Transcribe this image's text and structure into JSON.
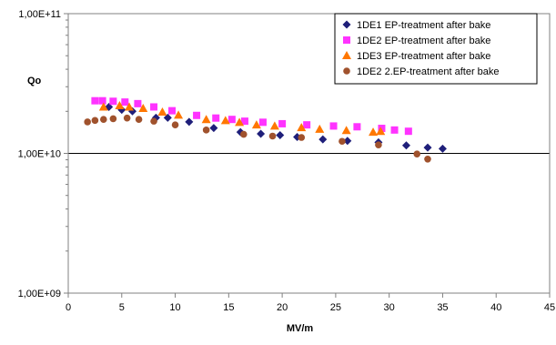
{
  "chart_data": {
    "type": "scatter",
    "title": "",
    "xlabel": "MV/m",
    "ylabel": "Qo",
    "xlim": [
      0,
      45
    ],
    "x_ticks": [
      0,
      5,
      10,
      15,
      20,
      25,
      30,
      35,
      40,
      45
    ],
    "x_tick_labels": [
      "0",
      "5",
      "10",
      "15",
      "20",
      "25",
      "30",
      "35",
      "40",
      "45"
    ],
    "ylim": [
      1000000000,
      100000000000
    ],
    "y_scale": "log",
    "y_ticks": [
      1000000000,
      10000000000,
      100000000000
    ],
    "y_tick_labels": [
      "1,00E+09",
      "1,00E+10",
      "1,00E+11"
    ],
    "grid": "horizontal major lines only",
    "legend_position": "top-right",
    "series": [
      {
        "name": "1DE1 EP-treatment after bake",
        "marker": "diamond",
        "color": "#1F1F7A",
        "points": [
          [
            3.8,
            21500000000.0
          ],
          [
            5.0,
            20500000000.0
          ],
          [
            6.0,
            20000000000.0
          ],
          [
            8.2,
            18000000000.0
          ],
          [
            9.3,
            18000000000.0
          ],
          [
            11.3,
            16800000000.0
          ],
          [
            13.6,
            15200000000.0
          ],
          [
            16.1,
            14200000000.0
          ],
          [
            18.0,
            13800000000.0
          ],
          [
            19.8,
            13500000000.0
          ],
          [
            21.4,
            13100000000.0
          ],
          [
            23.8,
            12600000000.0
          ],
          [
            26.1,
            12300000000.0
          ],
          [
            29.0,
            12000000000.0
          ],
          [
            31.6,
            11400000000.0
          ],
          [
            33.6,
            11000000000.0
          ],
          [
            35.0,
            10800000000.0
          ]
        ]
      },
      {
        "name": "1DE2 EP-treatment after bake",
        "marker": "square",
        "color": "#FF33FF",
        "points": [
          [
            2.5,
            23800000000.0
          ],
          [
            3.2,
            23800000000.0
          ],
          [
            4.2,
            23600000000.0
          ],
          [
            5.3,
            23300000000.0
          ],
          [
            6.5,
            22700000000.0
          ],
          [
            8.0,
            21500000000.0
          ],
          [
            9.7,
            20200000000.0
          ],
          [
            12.0,
            18700000000.0
          ],
          [
            13.8,
            17900000000.0
          ],
          [
            15.3,
            17500000000.0
          ],
          [
            16.5,
            17000000000.0
          ],
          [
            18.2,
            16700000000.0
          ],
          [
            20.0,
            16300000000.0
          ],
          [
            22.3,
            16000000000.0
          ],
          [
            24.8,
            15700000000.0
          ],
          [
            27.0,
            15500000000.0
          ],
          [
            29.3,
            15100000000.0
          ],
          [
            30.5,
            14700000000.0
          ],
          [
            31.8,
            14400000000.0
          ]
        ]
      },
      {
        "name": "1DE3 EP-treatment after bake",
        "marker": "triangle",
        "color": "#FF7700",
        "points": [
          [
            3.3,
            21500000000.0
          ],
          [
            4.8,
            22000000000.0
          ],
          [
            5.7,
            21500000000.0
          ],
          [
            7.0,
            21000000000.0
          ],
          [
            8.8,
            19800000000.0
          ],
          [
            10.3,
            18800000000.0
          ],
          [
            12.9,
            17500000000.0
          ],
          [
            14.7,
            17200000000.0
          ],
          [
            16.0,
            16700000000.0
          ],
          [
            17.6,
            16000000000.0
          ],
          [
            19.3,
            15700000000.0
          ],
          [
            21.8,
            15300000000.0
          ],
          [
            23.5,
            14900000000.0
          ],
          [
            26.0,
            14600000000.0
          ],
          [
            28.5,
            14200000000.0
          ],
          [
            29.2,
            14400000000.0
          ]
        ]
      },
      {
        "name": "1DE2 2.EP-treatment after bake",
        "marker": "circle",
        "color": "#A0522D",
        "points": [
          [
            1.8,
            16800000000.0
          ],
          [
            2.5,
            17200000000.0
          ],
          [
            3.3,
            17500000000.0
          ],
          [
            4.2,
            17700000000.0
          ],
          [
            5.5,
            17900000000.0
          ],
          [
            6.6,
            17500000000.0
          ],
          [
            8.0,
            17000000000.0
          ],
          [
            10.0,
            16000000000.0
          ],
          [
            12.9,
            14700000000.0
          ],
          [
            16.4,
            13700000000.0
          ],
          [
            19.1,
            13300000000.0
          ],
          [
            21.8,
            13000000000.0
          ],
          [
            25.6,
            12200000000.0
          ],
          [
            29.0,
            11500000000.0
          ],
          [
            32.6,
            9900000000.0
          ],
          [
            33.6,
            9100000000.0
          ]
        ]
      }
    ]
  }
}
